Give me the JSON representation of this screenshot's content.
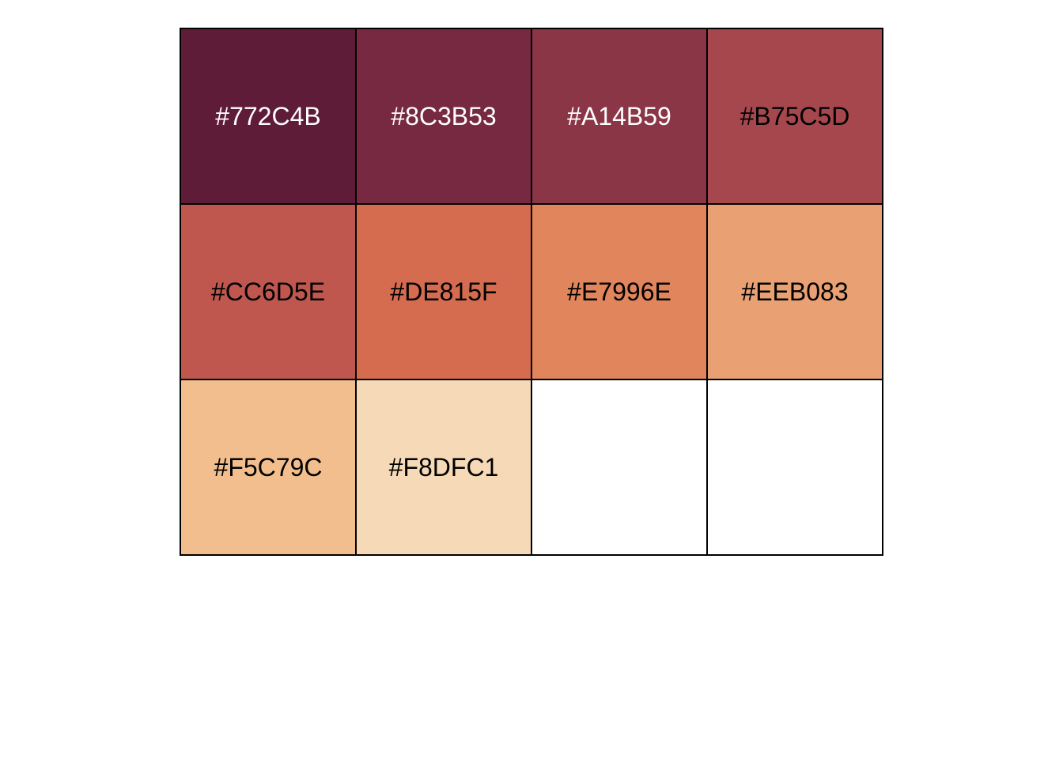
{
  "swatches": [
    {
      "label": "#772C4B",
      "fill": "#5F1C38",
      "text_color": "#FFFFFF"
    },
    {
      "label": "#8C3B53",
      "fill": "#762940",
      "text_color": "#FFFFFF"
    },
    {
      "label": "#A14B59",
      "fill": "#8A3646",
      "text_color": "#FFFFFF"
    },
    {
      "label": "#B75C5D",
      "fill": "#A6474E",
      "text_color": "#000000"
    },
    {
      "label": "#CC6D5E",
      "fill": "#BF574F",
      "text_color": "#000000"
    },
    {
      "label": "#DE815F",
      "fill": "#D56C50",
      "text_color": "#000000"
    },
    {
      "label": "#E7996E",
      "fill": "#E1855C",
      "text_color": "#000000"
    },
    {
      "label": "#EEB083",
      "fill": "#E9A072",
      "text_color": "#000000"
    },
    {
      "label": "#F5C79C",
      "fill": "#F2BE8E",
      "text_color": "#000000"
    },
    {
      "label": "#F8DFC1",
      "fill": "#F6D9B6",
      "text_color": "#000000"
    },
    {
      "label": "",
      "fill": "#FFFFFF",
      "text_color": "#000000"
    },
    {
      "label": "",
      "fill": "#FFFFFF",
      "text_color": "#000000"
    }
  ]
}
